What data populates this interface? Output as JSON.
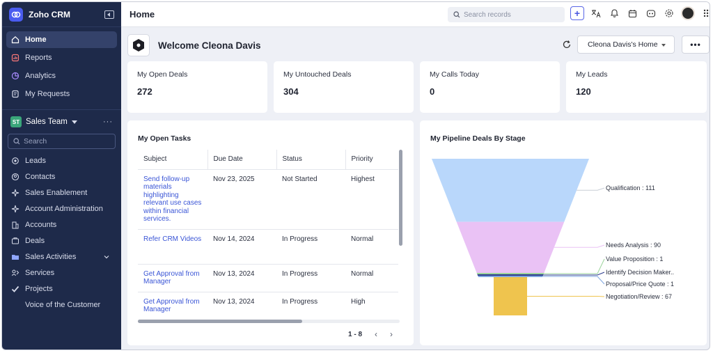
{
  "app": {
    "name": "Zoho CRM"
  },
  "sidebar": {
    "top_items": [
      {
        "label": "Home",
        "icon": "home-icon"
      },
      {
        "label": "Reports",
        "icon": "reports-icon"
      },
      {
        "label": "Analytics",
        "icon": "analytics-icon"
      },
      {
        "label": "My Requests",
        "icon": "requests-icon"
      }
    ],
    "team": {
      "badge": "ST",
      "name": "Sales Team",
      "more": "···"
    },
    "search_placeholder": "Search",
    "modules": [
      {
        "label": "Leads",
        "icon": "leads-icon"
      },
      {
        "label": "Contacts",
        "icon": "contacts-icon"
      },
      {
        "label": "Sales Enablement",
        "icon": "sparkle-icon"
      },
      {
        "label": "Account Administration",
        "icon": "sparkle-icon"
      },
      {
        "label": "Accounts",
        "icon": "building-icon"
      },
      {
        "label": "Deals",
        "icon": "deals-icon"
      },
      {
        "label": "Sales Activities",
        "icon": "folder-icon",
        "expandable": true
      },
      {
        "label": "Services",
        "icon": "services-icon"
      },
      {
        "label": "Projects",
        "icon": "check-icon"
      },
      {
        "label": "Voice of the Customer",
        "icon": ""
      }
    ]
  },
  "topbar": {
    "title": "Home",
    "search_placeholder": "Search records",
    "plus": "+"
  },
  "welcome": {
    "text": "Welcome Cleona Davis",
    "home_select": "Cleona Davis's Home",
    "more": "•••"
  },
  "kpis": [
    {
      "label": "My Open Deals",
      "value": "272"
    },
    {
      "label": "My Untouched Deals",
      "value": "304"
    },
    {
      "label": "My Calls Today",
      "value": "0"
    },
    {
      "label": "My Leads",
      "value": "120"
    }
  ],
  "tasks": {
    "title": "My Open Tasks",
    "columns": [
      "Subject",
      "Due Date",
      "Status",
      "Priority"
    ],
    "rows": [
      {
        "subject": "Send follow-up materials highlighting relevant use cases within financial services.",
        "due": "Nov 23, 2025",
        "status": "Not Started",
        "priority": "Highest"
      },
      {
        "subject": "Refer CRM Videos",
        "due": "Nov 14, 2024",
        "status": "In Progress",
        "priority": "Normal"
      },
      {
        "subject": "Get Approval from Manager",
        "due": "Nov 13, 2024",
        "status": "In Progress",
        "priority": "Normal"
      },
      {
        "subject": "Get Approval from Manager",
        "due": "Nov 13, 2024",
        "status": "In Progress",
        "priority": "High"
      }
    ],
    "pager": "1 - 8"
  },
  "pipeline": {
    "title": "My Pipeline Deals By Stage",
    "chart_data": {
      "type": "funnel",
      "title": "My Pipeline Deals By Stage",
      "stages": [
        {
          "label": "Qualification : 111",
          "value": 111,
          "color": "#b9d7fb"
        },
        {
          "label": "Needs Analysis : 90",
          "value": 90,
          "color": "#eac2f5"
        },
        {
          "label": "Value Proposition : 1",
          "value": 1,
          "color": "#9bd49b"
        },
        {
          "label": "Identify Decision Maker..",
          "value": 1,
          "color": "#2b3a8c"
        },
        {
          "label": "Proposal/Price Quote : 1",
          "value": 1,
          "color": "#7fa6e0"
        },
        {
          "label": "Negotiation/Review : 67",
          "value": 67,
          "color": "#efc44e"
        }
      ]
    }
  }
}
